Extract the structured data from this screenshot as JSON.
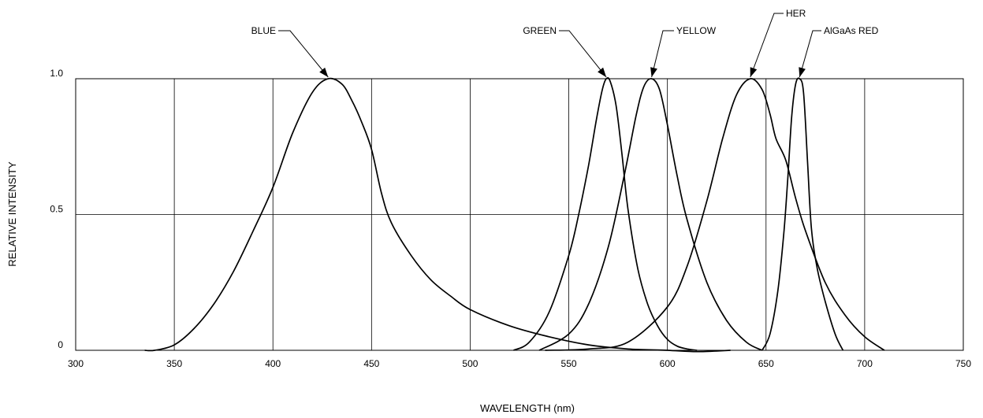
{
  "chart_data": {
    "type": "line",
    "xlabel": "WAVELENGTH (nm)",
    "ylabel": "RELATIVE INTENSITY",
    "xlim": [
      300,
      750
    ],
    "ylim": [
      0,
      1.0
    ],
    "x_ticks": [
      "300",
      "350",
      "400",
      "450",
      "500",
      "550",
      "600",
      "650",
      "700",
      "750"
    ],
    "y_ticks": [
      "0",
      "0.5",
      "1.0"
    ],
    "grid": true,
    "series": [
      {
        "name": "BLUE",
        "peak": 428,
        "x": [
          335,
          340,
          350,
          360,
          370,
          380,
          390,
          400,
          410,
          420,
          428,
          435,
          440,
          445,
          450,
          455,
          460,
          470,
          480,
          490,
          500,
          520,
          540,
          560,
          580,
          600,
          615,
          632
        ],
        "y": [
          0.0,
          0.0,
          0.02,
          0.08,
          0.17,
          0.29,
          0.44,
          0.6,
          0.8,
          0.95,
          1.0,
          0.98,
          0.92,
          0.84,
          0.74,
          0.58,
          0.47,
          0.35,
          0.26,
          0.2,
          0.15,
          0.09,
          0.05,
          0.02,
          0.005,
          0.0,
          -0.005,
          0.0
        ]
      },
      {
        "name": "GREEN",
        "peak": 569,
        "x": [
          522,
          530,
          540,
          550,
          555,
          560,
          564,
          567,
          569,
          571,
          574,
          577,
          580,
          585,
          590,
          595,
          600,
          605,
          610,
          615
        ],
        "y": [
          0.0,
          0.03,
          0.14,
          0.35,
          0.5,
          0.68,
          0.85,
          0.96,
          1.0,
          0.99,
          0.9,
          0.72,
          0.52,
          0.3,
          0.17,
          0.09,
          0.04,
          0.015,
          0.005,
          0.0
        ]
      },
      {
        "name": "YELLOW",
        "peak": 592,
        "x": [
          535,
          550,
          560,
          570,
          578,
          584,
          588,
          592,
          596,
          600,
          605,
          610,
          620,
          630,
          640,
          648
        ],
        "y": [
          0.0,
          0.06,
          0.17,
          0.38,
          0.64,
          0.86,
          0.97,
          1.0,
          0.96,
          0.83,
          0.64,
          0.48,
          0.25,
          0.11,
          0.03,
          0.0
        ]
      },
      {
        "name": "HER",
        "peak": 642,
        "x": [
          538,
          560,
          580,
          600,
          610,
          620,
          628,
          635,
          642,
          648,
          652,
          655,
          660,
          665,
          670,
          680,
          690,
          700,
          710
        ],
        "y": [
          0.0,
          0.005,
          0.03,
          0.16,
          0.31,
          0.55,
          0.78,
          0.94,
          1.0,
          0.96,
          0.87,
          0.78,
          0.7,
          0.56,
          0.44,
          0.25,
          0.13,
          0.05,
          0.0
        ]
      },
      {
        "name": "AlGaAs RED",
        "peak": 667,
        "x": [
          648,
          652,
          656,
          659,
          661,
          663,
          665,
          667,
          669,
          671,
          673,
          676,
          680,
          685,
          689
        ],
        "y": [
          0.0,
          0.06,
          0.22,
          0.43,
          0.63,
          0.86,
          0.98,
          1.0,
          0.95,
          0.7,
          0.45,
          0.3,
          0.18,
          0.06,
          0.0
        ]
      }
    ]
  }
}
